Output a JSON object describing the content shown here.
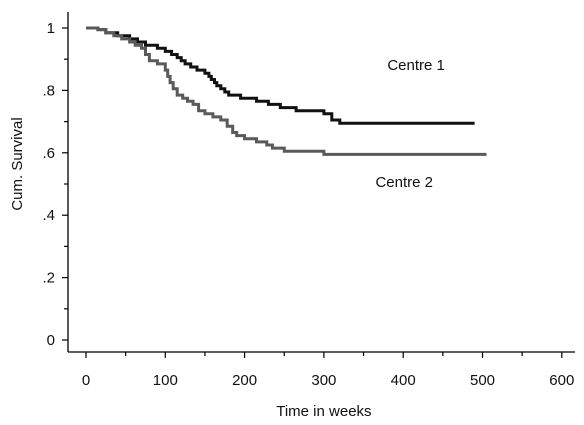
{
  "chart_data": {
    "type": "line",
    "title": "",
    "xlabel": "Time in weeks",
    "ylabel": "Cum. Survival",
    "xlim": [
      0,
      600
    ],
    "ylim": [
      0,
      1
    ],
    "x_ticks": [
      0,
      100,
      200,
      300,
      400,
      500,
      600
    ],
    "x_tick_labels": [
      "0",
      "100",
      "200",
      "300",
      "400",
      "500",
      "600"
    ],
    "y_ticks": [
      0,
      0.2,
      0.4,
      0.6,
      0.8,
      1
    ],
    "y_tick_labels": [
      "0",
      ".2",
      ".4",
      ".6",
      ".8",
      "1"
    ],
    "grid": false,
    "legend": "none (series labeled by in-plot annotations)",
    "series": [
      {
        "name": "Centre 1",
        "color": "#111111",
        "label_at": [
          380,
          0.865
        ],
        "points": [
          [
            0,
            1.0
          ],
          [
            15,
            0.995
          ],
          [
            25,
            0.985
          ],
          [
            40,
            0.975
          ],
          [
            55,
            0.965
          ],
          [
            65,
            0.955
          ],
          [
            75,
            0.945
          ],
          [
            90,
            0.935
          ],
          [
            100,
            0.925
          ],
          [
            108,
            0.915
          ],
          [
            115,
            0.905
          ],
          [
            120,
            0.895
          ],
          [
            125,
            0.885
          ],
          [
            132,
            0.875
          ],
          [
            140,
            0.865
          ],
          [
            150,
            0.855
          ],
          [
            155,
            0.845
          ],
          [
            158,
            0.835
          ],
          [
            162,
            0.825
          ],
          [
            165,
            0.815
          ],
          [
            170,
            0.805
          ],
          [
            175,
            0.795
          ],
          [
            180,
            0.785
          ],
          [
            195,
            0.775
          ],
          [
            215,
            0.765
          ],
          [
            230,
            0.755
          ],
          [
            245,
            0.745
          ],
          [
            265,
            0.735
          ],
          [
            300,
            0.725
          ],
          [
            310,
            0.705
          ],
          [
            320,
            0.695
          ],
          [
            490,
            0.695
          ]
        ]
      },
      {
        "name": "Centre 2",
        "color": "#5a5a5a",
        "label_at": [
          365,
          0.49
        ],
        "points": [
          [
            0,
            1.0
          ],
          [
            15,
            0.995
          ],
          [
            25,
            0.985
          ],
          [
            35,
            0.975
          ],
          [
            45,
            0.965
          ],
          [
            55,
            0.955
          ],
          [
            62,
            0.945
          ],
          [
            70,
            0.935
          ],
          [
            75,
            0.915
          ],
          [
            80,
            0.895
          ],
          [
            90,
            0.885
          ],
          [
            100,
            0.865
          ],
          [
            103,
            0.845
          ],
          [
            106,
            0.825
          ],
          [
            110,
            0.805
          ],
          [
            115,
            0.785
          ],
          [
            122,
            0.775
          ],
          [
            128,
            0.765
          ],
          [
            135,
            0.755
          ],
          [
            142,
            0.735
          ],
          [
            150,
            0.725
          ],
          [
            160,
            0.715
          ],
          [
            170,
            0.705
          ],
          [
            178,
            0.685
          ],
          [
            185,
            0.665
          ],
          [
            190,
            0.655
          ],
          [
            200,
            0.645
          ],
          [
            215,
            0.635
          ],
          [
            228,
            0.625
          ],
          [
            235,
            0.615
          ],
          [
            250,
            0.605
          ],
          [
            295,
            0.605
          ],
          [
            300,
            0.595
          ],
          [
            505,
            0.595
          ]
        ]
      }
    ]
  }
}
